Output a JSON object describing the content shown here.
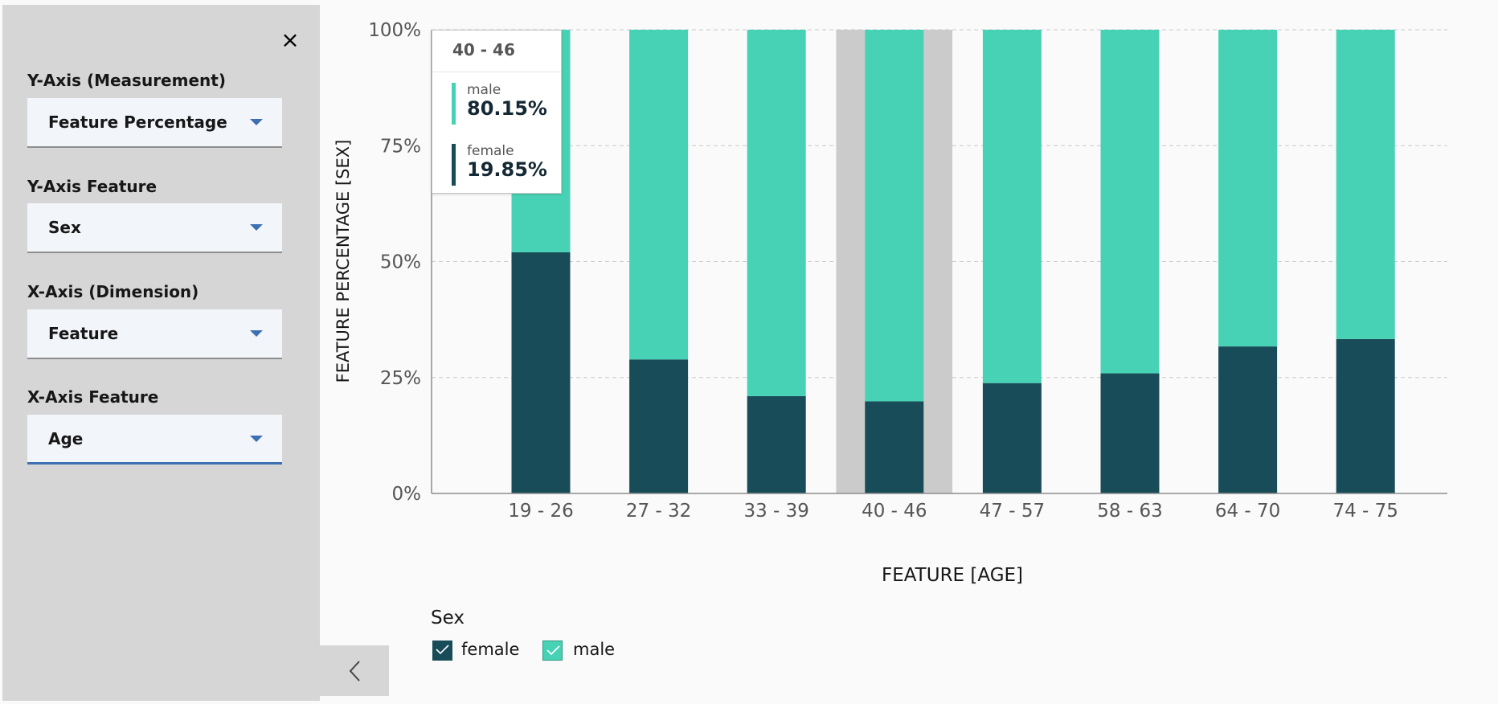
{
  "panel": {
    "close_glyph": "×",
    "fields": [
      {
        "label": "Y-Axis (Measurement)",
        "value": "Feature Percentage"
      },
      {
        "label": "Y-Axis Feature",
        "value": "Sex"
      },
      {
        "label": "X-Axis (Dimension)",
        "value": "Feature"
      },
      {
        "label": "X-Axis Feature",
        "value": "Age"
      }
    ]
  },
  "tooltip": {
    "title": "40 - 46",
    "rows": [
      {
        "name": "male",
        "value": "80.15%",
        "color": "#48d2b5"
      },
      {
        "name": "female",
        "value": "19.85%",
        "color": "#184c58"
      }
    ]
  },
  "legend": {
    "title": "Sex",
    "items": [
      {
        "label": "female",
        "color": "#184c58"
      },
      {
        "label": "male",
        "color": "#48d2b5"
      }
    ]
  },
  "chart_data": {
    "type": "bar",
    "stacked": true,
    "categories": [
      "19 - 26",
      "27 - 32",
      "33 - 39",
      "40 - 46",
      "47 - 57",
      "58 - 63",
      "64 - 70",
      "74 - 75"
    ],
    "series": [
      {
        "name": "female",
        "color": "#184c58",
        "values": [
          52,
          28.9,
          21,
          19.85,
          23.8,
          25.9,
          31.7,
          33.3
        ]
      },
      {
        "name": "male",
        "color": "#48d2b5",
        "values": [
          48,
          71.1,
          79,
          80.15,
          76.2,
          74.1,
          68.3,
          66.7
        ]
      }
    ],
    "yticks": [
      "0%",
      "25%",
      "50%",
      "75%",
      "100%"
    ],
    "ylim": [
      0,
      100
    ],
    "xlabel": "FEATURE [AGE]",
    "ylabel": "FEATURE PERCENTAGE [SEX]",
    "highlighted_category": "40 - 46",
    "grid": true,
    "legend": "bottom-left"
  }
}
